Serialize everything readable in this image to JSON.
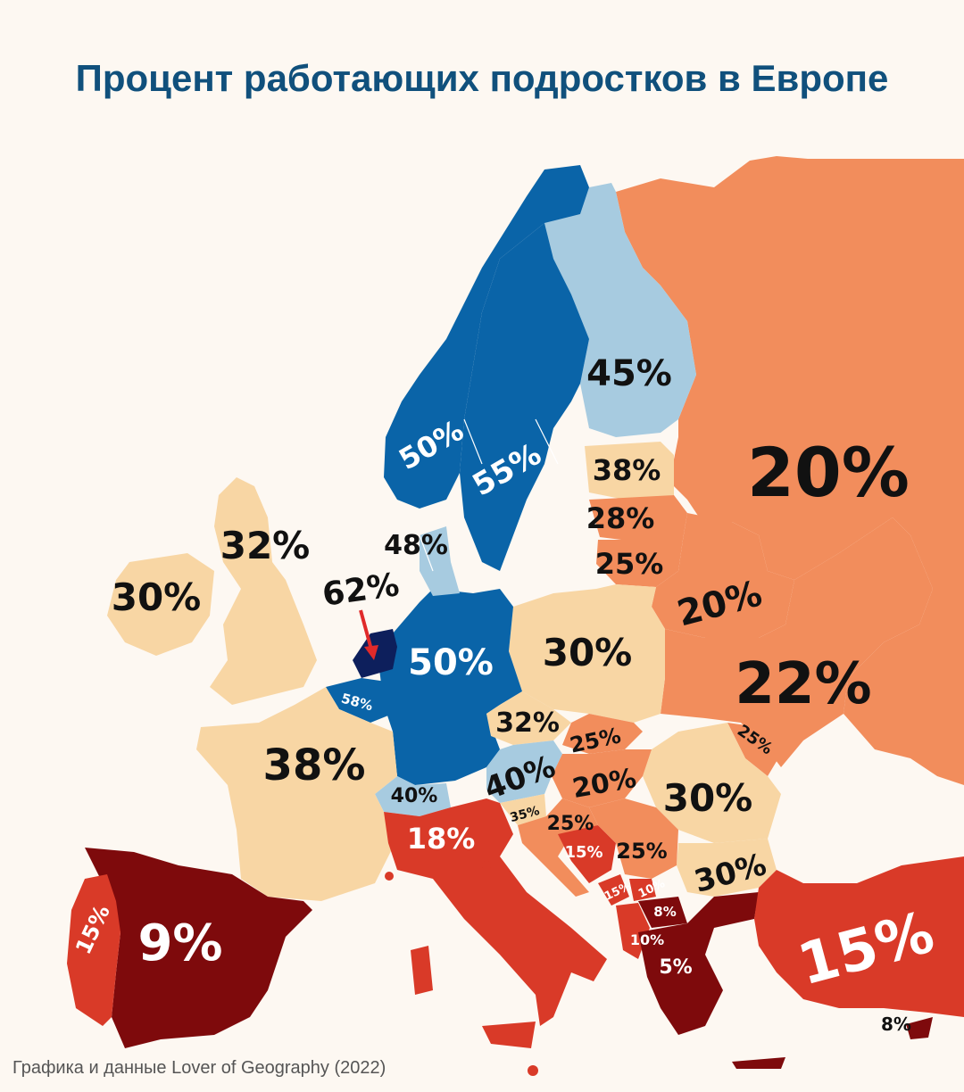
{
  "title": "Процент работающих подростков в Европе",
  "credit": "Графика и данные Lover of Geography (2022)",
  "legend_colors": {
    "very_high": "#0d1f5c",
    "high": "#0a64a8",
    "medium_high": "#a7cbe0",
    "medium": "#f8d6a4",
    "medium_low": "#f28d5c",
    "low": "#d93a28",
    "very_low": "#7e0a0c"
  },
  "regions": [
    {
      "id": "russia",
      "label": "20%"
    },
    {
      "id": "ukraine",
      "label": "22%"
    },
    {
      "id": "belarus",
      "label": "20%"
    },
    {
      "id": "finland",
      "label": "45%"
    },
    {
      "id": "sweden",
      "label": "55%"
    },
    {
      "id": "norway",
      "label": "50%"
    },
    {
      "id": "estonia",
      "label": "38%"
    },
    {
      "id": "latvia",
      "label": "28%"
    },
    {
      "id": "lithuania",
      "label": "25%"
    },
    {
      "id": "uk",
      "label": "32%"
    },
    {
      "id": "ireland",
      "label": "30%"
    },
    {
      "id": "denmark",
      "label": "48%"
    },
    {
      "id": "netherlands",
      "label": "62%"
    },
    {
      "id": "belgium",
      "label": "58%"
    },
    {
      "id": "germany",
      "label": "50%"
    },
    {
      "id": "poland",
      "label": "30%"
    },
    {
      "id": "czechia",
      "label": "32%"
    },
    {
      "id": "slovakia",
      "label": "25%"
    },
    {
      "id": "austria",
      "label": "40%"
    },
    {
      "id": "switzerland",
      "label": "40%"
    },
    {
      "id": "hungary",
      "label": "20%"
    },
    {
      "id": "moldova",
      "label": "25%"
    },
    {
      "id": "romania",
      "label": "30%"
    },
    {
      "id": "france",
      "label": "38%"
    },
    {
      "id": "italy",
      "label": "18%"
    },
    {
      "id": "slovenia",
      "label": "35%"
    },
    {
      "id": "croatia",
      "label": "25%"
    },
    {
      "id": "bosnia",
      "label": "15%"
    },
    {
      "id": "serbia",
      "label": "25%"
    },
    {
      "id": "bulgaria",
      "label": "30%"
    },
    {
      "id": "montenegro",
      "label": "15%"
    },
    {
      "id": "kosovo",
      "label": "10%"
    },
    {
      "id": "north_macedonia",
      "label": "8%"
    },
    {
      "id": "albania",
      "label": "10%"
    },
    {
      "id": "greece",
      "label": "5%"
    },
    {
      "id": "turkey",
      "label": "15%"
    },
    {
      "id": "spain",
      "label": "9%"
    },
    {
      "id": "portugal",
      "label": "15%"
    },
    {
      "id": "cyprus",
      "label": "8%"
    }
  ]
}
